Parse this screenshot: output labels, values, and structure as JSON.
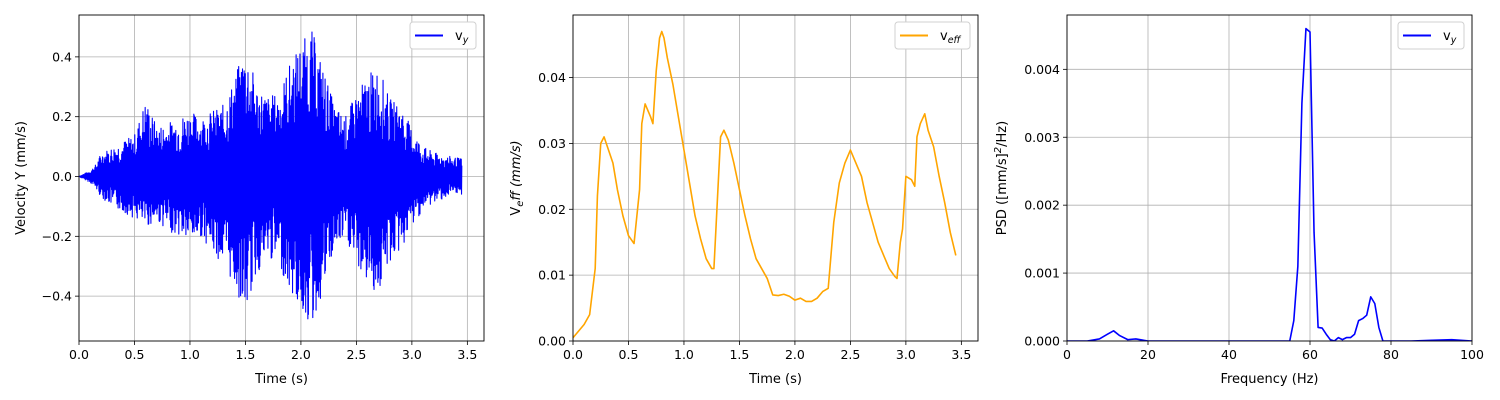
{
  "chart_data": [
    {
      "type": "line",
      "title": "",
      "xlabel": "Time (s)",
      "ylabel": "Velocity Y (mm/s)",
      "xlim": [
        0,
        3.65
      ],
      "ylim": [
        -0.55,
        0.54
      ],
      "xticks": [
        0,
        0.5,
        1.0,
        1.5,
        2.0,
        2.5,
        3.0,
        3.5
      ],
      "xtick_labels": [
        "0.0",
        "0.5",
        "1.0",
        "1.5",
        "2.0",
        "2.5",
        "3.0",
        "3.5"
      ],
      "yticks": [
        -0.4,
        -0.2,
        0.0,
        0.2,
        0.4
      ],
      "ytick_labels": [
        "−0.4",
        "−0.2",
        "0.0",
        "0.2",
        "0.4"
      ],
      "grid": true,
      "legend_position": "top-right",
      "series": [
        {
          "name": "v",
          "name_sub": "y",
          "color": "#0000ff",
          "representation": "oscillating signal ~60 Hz; envelope gives peak amplitude over time",
          "x": [
            0.0,
            0.1,
            0.15,
            0.2,
            0.3,
            0.4,
            0.5,
            0.6,
            0.7,
            0.8,
            0.9,
            1.0,
            1.1,
            1.2,
            1.3,
            1.4,
            1.5,
            1.6,
            1.7,
            1.8,
            1.9,
            2.0,
            2.1,
            2.2,
            2.3,
            2.4,
            2.5,
            2.6,
            2.7,
            2.8,
            2.9,
            3.0,
            3.1,
            3.2,
            3.3,
            3.45
          ],
          "envelope_upper": [
            0.0,
            0.02,
            0.04,
            0.08,
            0.1,
            0.12,
            0.14,
            0.26,
            0.17,
            0.18,
            0.2,
            0.22,
            0.2,
            0.22,
            0.24,
            0.33,
            0.44,
            0.31,
            0.27,
            0.28,
            0.38,
            0.45,
            0.49,
            0.37,
            0.24,
            0.2,
            0.28,
            0.34,
            0.37,
            0.26,
            0.24,
            0.16,
            0.1,
            0.08,
            0.07,
            0.06
          ],
          "envelope_lower": [
            0.0,
            -0.02,
            -0.04,
            -0.07,
            -0.1,
            -0.12,
            -0.14,
            -0.17,
            -0.15,
            -0.18,
            -0.2,
            -0.22,
            -0.2,
            -0.25,
            -0.3,
            -0.37,
            -0.46,
            -0.33,
            -0.28,
            -0.29,
            -0.39,
            -0.45,
            -0.51,
            -0.39,
            -0.25,
            -0.21,
            -0.3,
            -0.36,
            -0.4,
            -0.29,
            -0.25,
            -0.17,
            -0.11,
            -0.09,
            -0.07,
            -0.06
          ]
        }
      ]
    },
    {
      "type": "line",
      "title": "",
      "xlabel": "Time (s)",
      "ylabel": "V",
      "ylabel_sub": "e",
      "ylabel_rest": "ff (mm/s)",
      "xlim": [
        0,
        3.65
      ],
      "ylim": [
        0,
        0.0495
      ],
      "xticks": [
        0,
        0.5,
        1.0,
        1.5,
        2.0,
        2.5,
        3.0,
        3.5
      ],
      "xtick_labels": [
        "0.0",
        "0.5",
        "1.0",
        "1.5",
        "2.0",
        "2.5",
        "3.0",
        "3.5"
      ],
      "yticks": [
        0,
        0.01,
        0.02,
        0.03,
        0.04
      ],
      "ytick_labels": [
        "0.00",
        "0.01",
        "0.02",
        "0.03",
        "0.04"
      ],
      "grid": true,
      "legend_position": "top-right",
      "series": [
        {
          "name": "v",
          "name_sub": "eff",
          "color": "#ffa500",
          "x": [
            0.0,
            0.05,
            0.1,
            0.15,
            0.2,
            0.22,
            0.25,
            0.28,
            0.32,
            0.36,
            0.4,
            0.45,
            0.5,
            0.55,
            0.6,
            0.62,
            0.65,
            0.7,
            0.72,
            0.75,
            0.78,
            0.8,
            0.82,
            0.85,
            0.9,
            0.95,
            1.0,
            1.05,
            1.1,
            1.15,
            1.2,
            1.25,
            1.27,
            1.3,
            1.33,
            1.36,
            1.4,
            1.45,
            1.5,
            1.55,
            1.6,
            1.65,
            1.7,
            1.75,
            1.8,
            1.85,
            1.9,
            1.95,
            2.0,
            2.05,
            2.1,
            2.15,
            2.2,
            2.25,
            2.3,
            2.35,
            2.4,
            2.45,
            2.5,
            2.55,
            2.6,
            2.65,
            2.7,
            2.75,
            2.8,
            2.85,
            2.9,
            2.92,
            2.95,
            2.97,
            3.0,
            3.05,
            3.08,
            3.1,
            3.13,
            3.17,
            3.2,
            3.25,
            3.3,
            3.35,
            3.4,
            3.45
          ],
          "y": [
            0.0005,
            0.0015,
            0.0025,
            0.004,
            0.011,
            0.022,
            0.03,
            0.031,
            0.029,
            0.027,
            0.023,
            0.019,
            0.016,
            0.0148,
            0.023,
            0.033,
            0.036,
            0.034,
            0.033,
            0.041,
            0.046,
            0.047,
            0.046,
            0.043,
            0.039,
            0.034,
            0.029,
            0.024,
            0.019,
            0.0155,
            0.0125,
            0.011,
            0.011,
            0.021,
            0.031,
            0.032,
            0.0305,
            0.027,
            0.023,
            0.019,
            0.0155,
            0.0125,
            0.011,
            0.0095,
            0.007,
            0.0069,
            0.0071,
            0.0068,
            0.0062,
            0.0065,
            0.006,
            0.006,
            0.0065,
            0.0075,
            0.008,
            0.018,
            0.024,
            0.027,
            0.029,
            0.027,
            0.025,
            0.021,
            0.018,
            0.015,
            0.013,
            0.011,
            0.0098,
            0.0095,
            0.015,
            0.017,
            0.025,
            0.0245,
            0.0235,
            0.031,
            0.033,
            0.0345,
            0.032,
            0.0295,
            0.025,
            0.021,
            0.0165,
            0.013
          ]
        }
      ]
    },
    {
      "type": "line",
      "title": "",
      "xlabel": "Frequency (Hz)",
      "ylabel": "PSD ([mm/s]",
      "ylabel_sup": "2",
      "ylabel_rest": "/Hz)",
      "xlim": [
        0,
        100
      ],
      "ylim": [
        0,
        0.0048
      ],
      "xticks": [
        0,
        20,
        40,
        60,
        80,
        100
      ],
      "xtick_labels": [
        "0",
        "20",
        "40",
        "60",
        "80",
        "100"
      ],
      "yticks": [
        0,
        0.001,
        0.002,
        0.003,
        0.004
      ],
      "ytick_labels": [
        "0.000",
        "0.001",
        "0.002",
        "0.003",
        "0.004"
      ],
      "grid": true,
      "legend_position": "top-right",
      "series": [
        {
          "name": "v",
          "name_sub": "y",
          "color": "#0000ff",
          "x": [
            0,
            5,
            8,
            10,
            11.5,
            13,
            15,
            17,
            20,
            30,
            40,
            50,
            55,
            56,
            57,
            58,
            59,
            60,
            61,
            62,
            63,
            64,
            65,
            66,
            67,
            68,
            69,
            70,
            71,
            72,
            73,
            74,
            75,
            76,
            77,
            78,
            80,
            85,
            90,
            95,
            100
          ],
          "y": [
            0.0,
            0.0,
            3e-05,
            0.0001,
            0.00015,
            8e-05,
            2e-05,
            3e-05,
            0.0,
            0.0,
            0.0,
            0.0,
            0.0,
            0.0003,
            0.0011,
            0.0035,
            0.0046,
            0.00455,
            0.0016,
            0.0002,
            0.00019,
            0.0001,
            2e-05,
            0.0,
            5e-05,
            2e-05,
            5e-05,
            5e-05,
            0.0001,
            0.0003,
            0.00033,
            0.00038,
            0.00065,
            0.00055,
            0.0002,
            0.0,
            0.0,
            0.0,
            1e-05,
            2e-05,
            0.0
          ]
        }
      ]
    }
  ]
}
